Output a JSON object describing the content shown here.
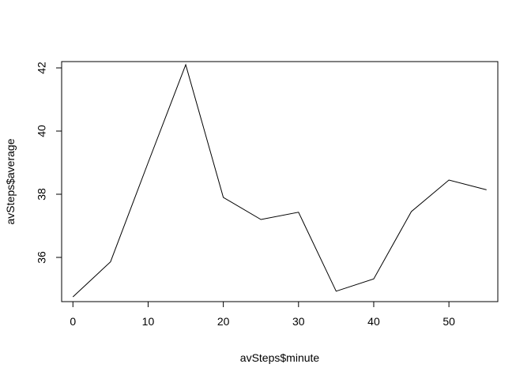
{
  "chart_data": {
    "type": "line",
    "title": "",
    "xlabel": "avSteps$minute",
    "ylabel": "avSteps$average",
    "xlim": [
      -1.5,
      56.5
    ],
    "ylim": [
      34.6,
      42.2
    ],
    "x_ticks": [
      0,
      10,
      20,
      30,
      40,
      50
    ],
    "y_ticks": [
      36,
      38,
      40,
      42
    ],
    "x_tick_labels": [
      "0",
      "10",
      "20",
      "30",
      "40",
      "50"
    ],
    "y_tick_labels": [
      "36",
      "38",
      "40",
      "42"
    ],
    "grid": false,
    "line_color": "#000000",
    "series": [
      {
        "x": [
          0,
          5,
          10,
          15,
          20,
          25,
          30,
          35,
          40,
          45,
          50,
          55
        ],
        "values": [
          34.75,
          35.86,
          39.0,
          42.1,
          37.9,
          37.2,
          37.43,
          34.93,
          35.32,
          37.45,
          38.45,
          38.14
        ]
      }
    ]
  }
}
